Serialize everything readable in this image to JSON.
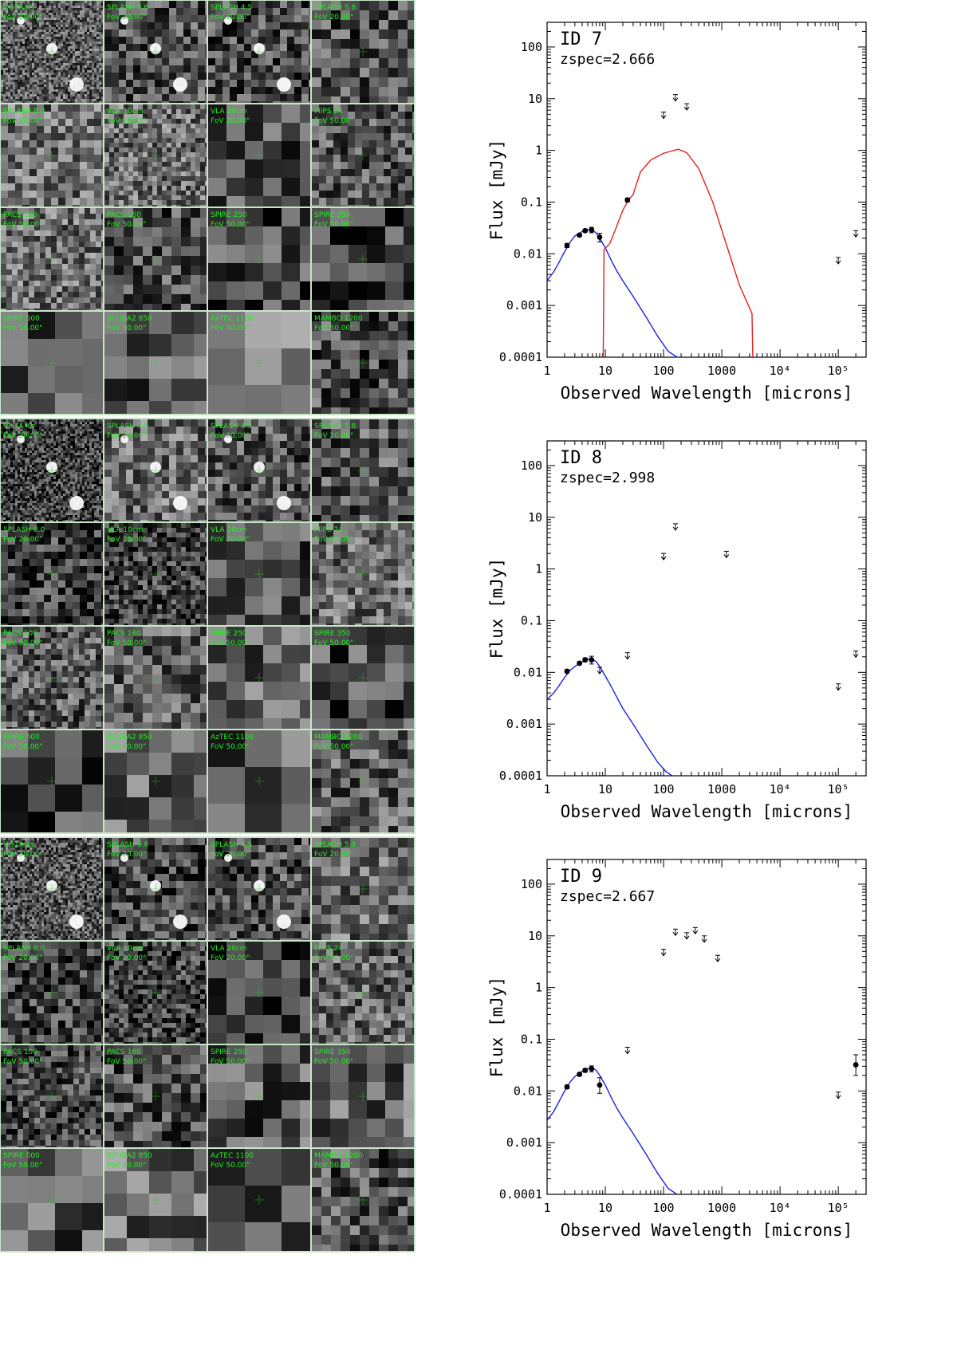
{
  "cutout_labels": [
    [
      [
        "VISTA Ks",
        "FoV 20.00\""
      ],
      [
        "SPLASH 3.6",
        "FoV 20.00\""
      ],
      [
        "SPLASH 4.5",
        "FoV 20.00\""
      ],
      [
        "SPLASH 5.8",
        "FoV 20.00\""
      ]
    ],
    [
      [
        "SPLASH 8.0",
        "FoV 20.00\""
      ],
      [
        "VLA 10cm",
        "FoV 20.00\""
      ],
      [
        "VLA 20cm",
        "FoV 20.00\""
      ],
      [
        "MIPS 24",
        "FoV 50.00\""
      ]
    ],
    [
      [
        "PACS 100",
        "FoV 50.00\""
      ],
      [
        "PACS 160",
        "FoV 50.00\""
      ],
      [
        "SPIRE 250",
        "FoV 50.00\""
      ],
      [
        "SPIRE 350",
        "FoV 50.00\""
      ]
    ],
    [
      [
        "SPIRE 500",
        "FoV 50.00\""
      ],
      [
        "SCUBA2 850",
        "FoV 50.00\""
      ],
      [
        "AzTEC 1100",
        "FoV 50.00\""
      ],
      [
        "MAMBO 1200",
        "FoV 50.00\""
      ]
    ]
  ],
  "colors": {
    "blue_template": "#1f1fe6",
    "red_template": "#e61f1f",
    "cutout_border": "#c8e6c8",
    "label": "#22ee22"
  },
  "chart_data": [
    {
      "type": "scatter",
      "title": "ID 7",
      "subtitle": "zspec=2.666",
      "xlabel": "Observed Wavelength [microns]",
      "ylabel": "Flux [mJy]",
      "xscale": "log",
      "yscale": "log",
      "xlim": [
        1,
        300000
      ],
      "ylim": [
        0.0001,
        300
      ],
      "x_ticks": [
        "1",
        "10",
        "100",
        "1000",
        "10⁴",
        "10⁵"
      ],
      "y_ticks": [
        "0.0001",
        "0.001",
        "0.01",
        "0.1",
        "1",
        "10",
        "100"
      ],
      "detections": [
        {
          "x": 2.2,
          "y": 0.0145,
          "err_lo": 0.0013,
          "err_hi": 0.0013
        },
        {
          "x": 3.6,
          "y": 0.023,
          "err_lo": 0.0015,
          "err_hi": 0.0015
        },
        {
          "x": 4.5,
          "y": 0.028,
          "err_lo": 0.0018,
          "err_hi": 0.0018
        },
        {
          "x": 5.8,
          "y": 0.029,
          "err_lo": 0.0035,
          "err_hi": 0.0035
        },
        {
          "x": 8.0,
          "y": 0.021,
          "err_lo": 0.004,
          "err_hi": 0.004
        },
        {
          "x": 24,
          "y": 0.11,
          "err_lo": 0.01,
          "err_hi": 0.01
        }
      ],
      "upper_limits": [
        {
          "x": 100,
          "y": 5.5
        },
        {
          "x": 160,
          "y": 12
        },
        {
          "x": 250,
          "y": 8
        },
        {
          "x": 100000,
          "y": 0.0085
        },
        {
          "x": 200000,
          "y": 0.028
        }
      ],
      "series": [
        {
          "color": "blue",
          "points": [
            [
              1,
              0.003
            ],
            [
              1.3,
              0.0045
            ],
            [
              1.6,
              0.0068
            ],
            [
              2,
              0.011
            ],
            [
              2.5,
              0.017
            ],
            [
              3,
              0.022
            ],
            [
              4,
              0.027
            ],
            [
              5,
              0.029
            ],
            [
              6,
              0.029
            ],
            [
              7,
              0.025
            ],
            [
              8,
              0.02
            ],
            [
              10,
              0.013
            ],
            [
              13,
              0.007
            ],
            [
              16,
              0.0045
            ],
            [
              20,
              0.003
            ],
            [
              30,
              0.0015
            ],
            [
              50,
              0.0006
            ],
            [
              80,
              0.00025
            ],
            [
              120,
              0.00013
            ],
            [
              170,
              0.0001
            ]
          ]
        },
        {
          "color": "red",
          "points": [
            [
              9.2,
              0.0001
            ],
            [
              9.5,
              0.012
            ],
            [
              12,
              0.016
            ],
            [
              15,
              0.03
            ],
            [
              20,
              0.07
            ],
            [
              25,
              0.11
            ],
            [
              30,
              0.14
            ],
            [
              40,
              0.38
            ],
            [
              60,
              0.65
            ],
            [
              100,
              0.88
            ],
            [
              150,
              1.0
            ],
            [
              180,
              1.05
            ],
            [
              250,
              0.9
            ],
            [
              400,
              0.45
            ],
            [
              700,
              0.1
            ],
            [
              1200,
              0.015
            ],
            [
              2000,
              0.0025
            ],
            [
              3300,
              0.0007
            ],
            [
              3400,
              0.0001
            ]
          ]
        }
      ]
    },
    {
      "type": "scatter",
      "title": "ID 8",
      "subtitle": "zspec=2.998",
      "xlabel": "Observed Wavelength [microns]",
      "ylabel": "Flux [mJy]",
      "xscale": "log",
      "yscale": "log",
      "xlim": [
        1,
        300000
      ],
      "ylim": [
        0.0001,
        300
      ],
      "x_ticks": [
        "1",
        "10",
        "100",
        "1000",
        "10⁴",
        "10⁵"
      ],
      "y_ticks": [
        "0.0001",
        "0.001",
        "0.01",
        "0.1",
        "1",
        "10",
        "100"
      ],
      "detections": [
        {
          "x": 2.2,
          "y": 0.0105,
          "err_lo": 0.0008,
          "err_hi": 0.0008
        },
        {
          "x": 3.6,
          "y": 0.015,
          "err_lo": 0.001,
          "err_hi": 0.001
        },
        {
          "x": 4.5,
          "y": 0.0175,
          "err_lo": 0.0015,
          "err_hi": 0.0015
        },
        {
          "x": 5.8,
          "y": 0.0175,
          "err_lo": 0.003,
          "err_hi": 0.003
        }
      ],
      "upper_limits": [
        {
          "x": 8,
          "y": 0.0125
        },
        {
          "x": 24,
          "y": 0.024
        },
        {
          "x": 100,
          "y": 2
        },
        {
          "x": 160,
          "y": 7.5
        },
        {
          "x": 1200,
          "y": 2.2
        },
        {
          "x": 100000,
          "y": 0.006
        },
        {
          "x": 200000,
          "y": 0.026
        }
      ],
      "series": [
        {
          "color": "blue",
          "points": [
            [
              1,
              0.003
            ],
            [
              1.3,
              0.004
            ],
            [
              1.6,
              0.0055
            ],
            [
              2,
              0.008
            ],
            [
              2.5,
              0.011
            ],
            [
              3,
              0.013
            ],
            [
              4,
              0.016
            ],
            [
              5,
              0.018
            ],
            [
              6,
              0.018
            ],
            [
              7,
              0.016
            ],
            [
              8,
              0.013
            ],
            [
              10,
              0.0085
            ],
            [
              13,
              0.005
            ],
            [
              16,
              0.0032
            ],
            [
              20,
              0.002
            ],
            [
              30,
              0.001
            ],
            [
              50,
              0.0004
            ],
            [
              80,
              0.00018
            ],
            [
              110,
              0.00012
            ],
            [
              140,
              0.0001
            ]
          ]
        }
      ]
    },
    {
      "type": "scatter",
      "title": "ID 9",
      "subtitle": "zspec=2.667",
      "xlabel": "Observed Wavelength [microns]",
      "ylabel": "Flux [mJy]",
      "xscale": "log",
      "yscale": "log",
      "xlim": [
        1,
        300000
      ],
      "ylim": [
        0.0001,
        300
      ],
      "x_ticks": [
        "1",
        "10",
        "100",
        "1000",
        "10⁴",
        "10⁵"
      ],
      "y_ticks": [
        "0.0001",
        "0.001",
        "0.01",
        "0.1",
        "1",
        "10",
        "100"
      ],
      "detections": [
        {
          "x": 2.2,
          "y": 0.012,
          "err_lo": 0.0009,
          "err_hi": 0.0009
        },
        {
          "x": 3.6,
          "y": 0.021,
          "err_lo": 0.0015,
          "err_hi": 0.0015
        },
        {
          "x": 4.5,
          "y": 0.025,
          "err_lo": 0.002,
          "err_hi": 0.002
        },
        {
          "x": 5.8,
          "y": 0.027,
          "err_lo": 0.0035,
          "err_hi": 0.0035
        },
        {
          "x": 8.0,
          "y": 0.013,
          "err_lo": 0.004,
          "err_hi": 0.005
        },
        {
          "x": 200000,
          "y": 0.032,
          "err_lo": 0.012,
          "err_hi": 0.018
        }
      ],
      "upper_limits": [
        {
          "x": 24,
          "y": 0.07
        },
        {
          "x": 100,
          "y": 5.5
        },
        {
          "x": 160,
          "y": 13.5
        },
        {
          "x": 250,
          "y": 11.5
        },
        {
          "x": 350,
          "y": 14.5
        },
        {
          "x": 500,
          "y": 10
        },
        {
          "x": 850,
          "y": 4.2
        },
        {
          "x": 100000,
          "y": 0.0095
        }
      ],
      "series": [
        {
          "color": "blue",
          "points": [
            [
              1,
              0.0027
            ],
            [
              1.3,
              0.004
            ],
            [
              1.6,
              0.0062
            ],
            [
              2,
              0.01
            ],
            [
              2.5,
              0.015
            ],
            [
              3,
              0.019
            ],
            [
              4,
              0.024
            ],
            [
              5,
              0.027
            ],
            [
              6,
              0.028
            ],
            [
              7,
              0.025
            ],
            [
              8,
              0.02
            ],
            [
              10,
              0.013
            ],
            [
              13,
              0.007
            ],
            [
              16,
              0.0045
            ],
            [
              20,
              0.003
            ],
            [
              30,
              0.0015
            ],
            [
              50,
              0.0006
            ],
            [
              80,
              0.00025
            ],
            [
              120,
              0.00013
            ],
            [
              170,
              0.0001
            ]
          ]
        }
      ]
    }
  ]
}
